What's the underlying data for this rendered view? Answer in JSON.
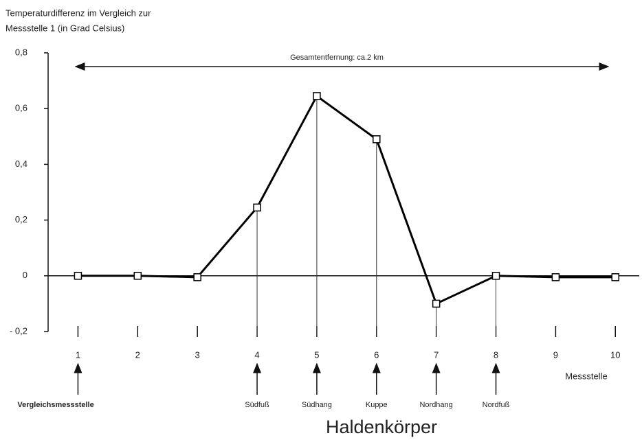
{
  "chart_data": {
    "type": "line",
    "ylabel": [
      "Temperaturdifferenz im Vergleich zur",
      "Messstelle 1 (in Grad Celsius)"
    ],
    "xlabel": "Messstelle",
    "footer": "Haldenkörper",
    "span_label": "Gesamtentfernung: ca.2 km",
    "x": [
      1,
      2,
      3,
      4,
      5,
      6,
      7,
      8,
      9,
      10
    ],
    "series": [
      {
        "name": "Temperaturdifferenz",
        "color": "#000000",
        "values": [
          0,
          0,
          -0.005,
          0.245,
          0.645,
          0.49,
          -0.1,
          0.0,
          -0.005,
          -0.005
        ]
      }
    ],
    "xlim": [
      0.5,
      10.4
    ],
    "xticks": [
      1,
      2,
      3,
      4,
      5,
      6,
      7,
      8,
      9,
      10
    ],
    "ylim": [
      -0.2,
      0.8
    ],
    "yticks": [
      {
        "value": -0.2,
        "label": "- 0,2"
      },
      0,
      {
        "value": 0.2,
        "label": "0,2"
      },
      {
        "value": 0.4,
        "label": "0,4"
      },
      {
        "value": 0.6,
        "label": "0,6"
      },
      {
        "value": 0.8,
        "label": "0,8"
      }
    ],
    "station_labels": [
      {
        "x": 1,
        "label": "Vergleichsmessstelle"
      },
      {
        "x": 4,
        "label": "Südfuß"
      },
      {
        "x": 5,
        "label": "Südhang"
      },
      {
        "x": 6,
        "label": "Kuppe"
      },
      {
        "x": 7,
        "label": "Nordhang"
      },
      {
        "x": 8,
        "label": "Nordfuß"
      }
    ]
  }
}
